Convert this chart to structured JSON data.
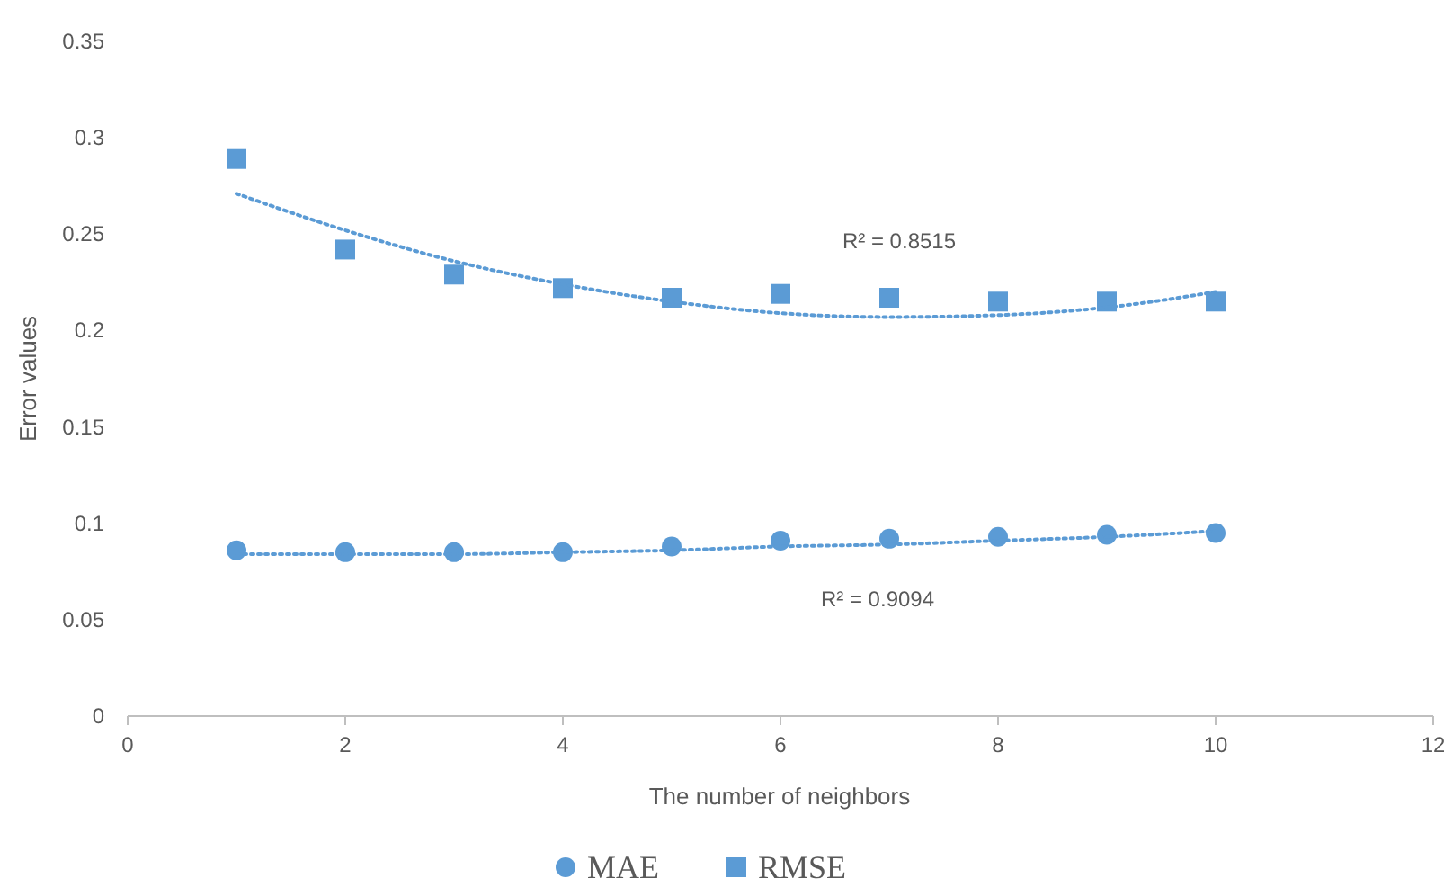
{
  "chart_data": {
    "type": "scatter",
    "xlabel": "The number of neighbors",
    "ylabel": "Error values",
    "xlim": [
      0,
      12
    ],
    "xticks": [
      0,
      2,
      4,
      6,
      8,
      10,
      12
    ],
    "ylim": [
      0,
      0.35
    ],
    "yticks": [
      0,
      0.05,
      0.1,
      0.15,
      0.2,
      0.25,
      0.3,
      0.35
    ],
    "grid": false,
    "legend": "bottom",
    "series": [
      {
        "name": "MAE",
        "marker": "circle",
        "color": "#5b9bd5",
        "x": [
          1,
          2,
          3,
          4,
          5,
          6,
          7,
          8,
          9,
          10
        ],
        "values": [
          0.086,
          0.085,
          0.085,
          0.085,
          0.088,
          0.091,
          0.092,
          0.093,
          0.094,
          0.095
        ]
      },
      {
        "name": "RMSE",
        "marker": "square",
        "color": "#5b9bd5",
        "x": [
          1,
          2,
          3,
          4,
          5,
          6,
          7,
          8,
          9,
          10
        ],
        "values": [
          0.289,
          0.242,
          0.229,
          0.222,
          0.217,
          0.219,
          0.217,
          0.215,
          0.215,
          0.215
        ]
      },
      {
        "type": "line",
        "marker": "none",
        "line_style": "dotted",
        "color": "#5b9bd5",
        "x": [
          1,
          2,
          3,
          4,
          5,
          6,
          7,
          8,
          9,
          10
        ],
        "values": [
          0.084,
          0.084,
          0.084,
          0.085,
          0.086,
          0.088,
          0.089,
          0.091,
          0.093,
          0.096
        ]
      },
      {
        "type": "line",
        "marker": "none",
        "line_style": "dotted",
        "color": "#5b9bd5",
        "x": [
          1,
          2,
          3,
          4,
          5,
          6,
          7,
          8,
          9,
          10
        ],
        "values": [
          0.271,
          0.252,
          0.236,
          0.224,
          0.215,
          0.209,
          0.207,
          0.208,
          0.212,
          0.22
        ]
      }
    ],
    "annotations": [
      "R² = 0.8515",
      "R² = 0.9094"
    ]
  }
}
